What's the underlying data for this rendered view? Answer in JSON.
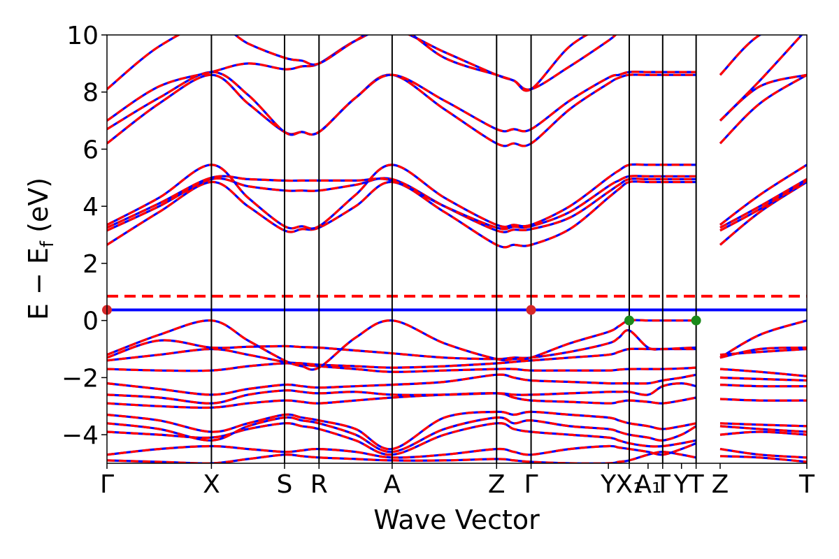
{
  "chart_data": {
    "type": "line",
    "title": "",
    "xlabel": "Wave Vector",
    "ylabel": "E − E",
    "ylabel_sub": "f",
    "ylabel_unit": " (eV)",
    "ylim": [
      -5,
      10
    ],
    "yticks": [
      {
        "value": -4,
        "label": "−4"
      },
      {
        "value": -2,
        "label": "−2"
      },
      {
        "value": 0,
        "label": "0"
      },
      {
        "value": 2,
        "label": "2"
      },
      {
        "value": 4,
        "label": "4"
      },
      {
        "value": 6,
        "label": "6"
      },
      {
        "value": 8,
        "label": "8"
      },
      {
        "value": 10,
        "label": "10"
      }
    ],
    "xlim": [
      0,
      6.7
    ],
    "kpoints": [
      {
        "label": "Γ",
        "x": 0.0,
        "line": false
      },
      {
        "label": "X",
        "x": 1.0,
        "line": true
      },
      {
        "label": "S",
        "x": 1.7,
        "line": true
      },
      {
        "label": "R",
        "x": 2.03,
        "line": true
      },
      {
        "label": "A",
        "x": 2.73,
        "line": true
      },
      {
        "label": "Z",
        "x": 3.73,
        "line": true
      },
      {
        "label": "Γ",
        "x": 4.06,
        "line": true
      },
      {
        "label": "Y",
        "x": 4.8,
        "line": false
      },
      {
        "label": "X₁",
        "x": 5.0,
        "line": true
      },
      {
        "label": "A₁",
        "x": 5.18,
        "line": false
      },
      {
        "label": "T",
        "x": 5.32,
        "line": true
      },
      {
        "label": "Y",
        "x": 5.5,
        "line": false
      },
      {
        "label": "T",
        "x": 5.64,
        "line": true
      },
      {
        "label": "Z",
        "x": 5.87,
        "line": false
      },
      {
        "label": "T",
        "x": 6.7,
        "line": false
      }
    ],
    "fermi_levels": [
      {
        "name": "blue",
        "value": 0.37,
        "color": "#0000ff",
        "style": "solid"
      },
      {
        "name": "red",
        "value": 0.85,
        "color": "#ff0000",
        "style": "dashed"
      }
    ],
    "markers": [
      {
        "x": 0.0,
        "y": 0.37,
        "color": "#d62728"
      },
      {
        "x": 4.06,
        "y": 0.37,
        "color": "#d62728"
      },
      {
        "x": 5.0,
        "y": 0.0,
        "color": "#1a8a1a"
      },
      {
        "x": 5.64,
        "y": 0.0,
        "color": "#1a8a1a"
      }
    ],
    "band_x": [
      0.0,
      0.5,
      1.0,
      1.35,
      1.7,
      1.865,
      2.03,
      2.38,
      2.73,
      3.23,
      3.73,
      3.895,
      4.06,
      4.43,
      4.8,
      4.9,
      5.0,
      5.18,
      5.32,
      5.5,
      5.64,
      5.87,
      6.25,
      6.7
    ],
    "segment_breaks": [
      20
    ],
    "bands": [
      [
        -4.9,
        -4.95,
        -5.0,
        -4.85,
        -4.7,
        -4.75,
        -4.8,
        -4.85,
        -4.9,
        -4.9,
        -4.85,
        -4.9,
        -4.95,
        -5.0,
        -5.0,
        -4.95,
        -4.9,
        -4.7,
        -4.6,
        -4.7,
        -4.8,
        -4.75,
        -4.8,
        -4.95
      ],
      [
        -4.7,
        -4.5,
        -4.4,
        -4.5,
        -4.6,
        -4.55,
        -4.5,
        -4.6,
        -4.8,
        -4.7,
        -4.5,
        -4.6,
        -4.7,
        -4.5,
        -4.4,
        -4.45,
        -4.5,
        -4.6,
        -4.7,
        -4.5,
        -4.3,
        -4.5,
        -4.7,
        -4.8
      ],
      [
        -3.9,
        -4.0,
        -4.1,
        -3.8,
        -3.6,
        -3.7,
        -3.8,
        -4.2,
        -4.7,
        -4.0,
        -3.6,
        -3.8,
        -3.9,
        -4.0,
        -4.1,
        -4.2,
        -4.3,
        -4.4,
        -4.4,
        -4.3,
        -4.2,
        -4.0,
        -3.9,
        -4.0
      ],
      [
        -3.6,
        -3.8,
        -4.2,
        -3.7,
        -3.4,
        -3.5,
        -3.6,
        -4.0,
        -4.6,
        -3.8,
        -3.4,
        -3.6,
        -3.5,
        -3.7,
        -3.8,
        -3.9,
        -4.0,
        -4.1,
        -4.2,
        -4.0,
        -3.7,
        -3.7,
        -3.8,
        -3.9
      ],
      [
        -3.3,
        -3.5,
        -3.9,
        -3.6,
        -3.3,
        -3.4,
        -3.5,
        -3.8,
        -4.5,
        -3.4,
        -3.2,
        -3.3,
        -3.2,
        -3.3,
        -3.4,
        -3.5,
        -3.6,
        -3.7,
        -3.8,
        -3.7,
        -3.6,
        -3.6,
        -3.65,
        -3.7
      ],
      [
        -2.9,
        -3.0,
        -3.05,
        -2.9,
        -2.8,
        -2.85,
        -2.9,
        -2.8,
        -2.7,
        -2.6,
        -2.55,
        -2.7,
        -2.8,
        -2.85,
        -2.9,
        -2.85,
        -2.8,
        -2.85,
        -2.9,
        -2.8,
        -2.7,
        -2.75,
        -2.8,
        -2.8
      ],
      [
        -2.6,
        -2.7,
        -2.9,
        -2.6,
        -2.45,
        -2.5,
        -2.55,
        -2.5,
        -2.6,
        -2.6,
        -2.55,
        -2.6,
        -2.6,
        -2.55,
        -2.5,
        -2.5,
        -2.5,
        -2.6,
        -2.3,
        -2.2,
        -2.3,
        -2.25,
        -2.3,
        -2.3
      ],
      [
        -2.2,
        -2.4,
        -2.6,
        -2.4,
        -2.25,
        -2.3,
        -2.35,
        -2.3,
        -2.25,
        -2.15,
        -1.9,
        -2.0,
        -2.1,
        -2.15,
        -2.2,
        -2.2,
        -2.2,
        -2.2,
        -2.1,
        -2.0,
        -1.9,
        -2.0,
        -2.05,
        -2.1
      ],
      [
        -1.7,
        -1.75,
        -1.75,
        -1.6,
        -1.5,
        -1.55,
        -1.6,
        -1.7,
        -1.8,
        -1.75,
        -1.7,
        -1.7,
        -1.75,
        -1.75,
        -1.75,
        -1.72,
        -1.7,
        -1.7,
        -1.7,
        -1.68,
        -1.65,
        -1.7,
        -1.8,
        -1.95
      ],
      [
        -1.4,
        -1.2,
        -1.0,
        -1.2,
        -1.45,
        -1.5,
        -1.55,
        -1.6,
        -1.65,
        -1.6,
        -1.5,
        -1.45,
        -1.4,
        -1.3,
        -1.2,
        -1.1,
        -1.0,
        -1.0,
        -1.0,
        -1.0,
        -1.0,
        -1.2,
        -1.1,
        -1.0
      ],
      [
        -1.3,
        -0.7,
        -0.95,
        -0.92,
        -0.9,
        -0.93,
        -0.95,
        -1.05,
        -1.15,
        -1.3,
        -1.35,
        -1.3,
        -1.3,
        -1.1,
        -0.8,
        -0.6,
        -0.35,
        -0.95,
        -1.0,
        -0.97,
        -0.95,
        -1.3,
        -1.0,
        -0.95
      ],
      [
        -1.2,
        -0.5,
        0.0,
        -0.7,
        -1.4,
        -1.6,
        -1.65,
        -0.6,
        0.0,
        -0.8,
        -1.35,
        -1.35,
        -1.3,
        -0.8,
        -0.4,
        -0.2,
        0.0,
        0.0,
        0.0,
        0.0,
        0.0,
        -1.3,
        -0.5,
        0.0
      ],
      [
        2.65,
        3.8,
        4.85,
        4.0,
        3.15,
        3.2,
        3.25,
        4.0,
        4.85,
        3.8,
        2.65,
        2.65,
        2.65,
        3.2,
        4.3,
        4.6,
        4.85,
        4.85,
        4.85,
        4.85,
        4.85,
        2.65,
        3.8,
        4.85
      ],
      [
        3.15,
        4.0,
        4.95,
        4.7,
        4.55,
        4.55,
        4.55,
        4.75,
        4.95,
        4.0,
        3.15,
        3.18,
        3.2,
        3.6,
        4.5,
        4.75,
        4.95,
        4.95,
        4.95,
        4.95,
        4.95,
        3.15,
        3.9,
        4.9
      ],
      [
        3.25,
        4.1,
        5.0,
        4.95,
        4.9,
        4.9,
        4.9,
        4.9,
        4.9,
        4.0,
        3.25,
        3.28,
        3.3,
        3.8,
        4.7,
        4.9,
        5.05,
        5.05,
        5.05,
        5.05,
        5.05,
        3.25,
        4.0,
        4.95
      ],
      [
        3.35,
        4.3,
        5.45,
        4.3,
        3.3,
        3.3,
        3.3,
        4.4,
        5.45,
        4.3,
        3.35,
        3.35,
        3.35,
        4.0,
        5.0,
        5.25,
        5.45,
        5.45,
        5.45,
        5.45,
        5.45,
        3.35,
        4.4,
        5.45
      ],
      [
        6.2,
        7.6,
        8.6,
        7.6,
        6.6,
        6.6,
        6.6,
        7.8,
        8.6,
        7.4,
        6.2,
        6.2,
        6.2,
        7.4,
        8.3,
        8.5,
        8.6,
        8.6,
        8.6,
        8.6,
        8.6,
        6.2,
        7.6,
        8.6
      ],
      [
        6.7,
        7.8,
        8.7,
        7.9,
        6.6,
        6.6,
        6.6,
        7.8,
        8.6,
        7.7,
        6.7,
        6.7,
        6.7,
        7.7,
        8.5,
        8.6,
        8.7,
        8.7,
        8.7,
        8.7,
        8.7,
        7.0,
        8.2,
        8.6
      ],
      [
        7.0,
        8.2,
        8.7,
        9.0,
        8.8,
        8.9,
        9.0,
        9.8,
        10.2,
        9.4,
        8.6,
        8.4,
        8.1,
        8.9,
        9.8,
        10.1,
        10.3,
        10.3,
        10.3,
        10.3,
        10.3,
        8.6,
        10.0,
        10.4
      ],
      [
        8.1,
        9.6,
        10.4,
        9.7,
        9.2,
        9.1,
        9.0,
        9.8,
        10.4,
        9.2,
        8.6,
        8.4,
        8.1,
        9.6,
        10.4,
        10.6,
        10.8,
        10.8,
        10.8,
        10.8,
        10.8,
        7.0,
        8.4,
        10.2
      ]
    ]
  }
}
